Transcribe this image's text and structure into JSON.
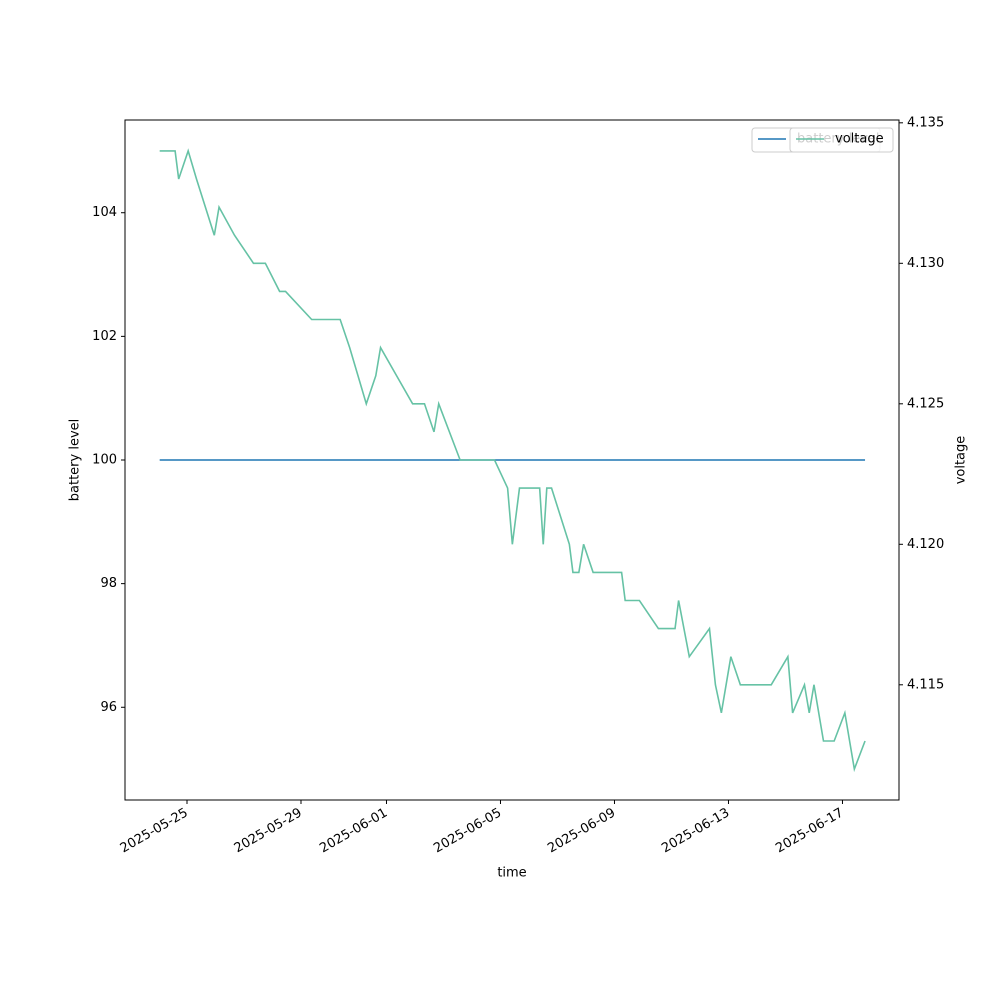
{
  "chart_data": {
    "type": "line",
    "x_label": "time",
    "y_label": "battery level",
    "y2_label": "voltage",
    "x": [
      "2025-05-24T01:00",
      "2025-05-24T14:00",
      "2025-05-24T17:00",
      "2025-05-25T01:00",
      "2025-05-25T08:00",
      "2025-05-25T23:00",
      "2025-05-26T03:00",
      "2025-05-26T16:00",
      "2025-05-27T08:00",
      "2025-05-27T18:00",
      "2025-05-28T06:00",
      "2025-05-28T11:00",
      "2025-05-29T09:00",
      "2025-05-30T09:00",
      "2025-05-30T17:00",
      "2025-05-31T07:00",
      "2025-05-31T15:00",
      "2025-05-31T19:00",
      "2025-06-01T22:00",
      "2025-06-02T08:00",
      "2025-06-02T16:00",
      "2025-06-02T20:00",
      "2025-06-03T14:00",
      "2025-06-04T19:00",
      "2025-06-05T06:00",
      "2025-06-05T10:00",
      "2025-06-05T16:00",
      "2025-06-06T09:00",
      "2025-06-06T12:00",
      "2025-06-06T15:00",
      "2025-06-06T19:00",
      "2025-06-07T10:00",
      "2025-06-07T13:00",
      "2025-06-07T18:00",
      "2025-06-07T22:00",
      "2025-06-08T06:00",
      "2025-06-09T06:00",
      "2025-06-09T09:00",
      "2025-06-09T21:00",
      "2025-06-10T13:00",
      "2025-06-11T03:00",
      "2025-06-11T06:00",
      "2025-06-11T15:00",
      "2025-06-12T08:00",
      "2025-06-12T13:00",
      "2025-06-12T18:00",
      "2025-06-13T02:00",
      "2025-06-13T10:00",
      "2025-06-14T12:00",
      "2025-06-15T02:00",
      "2025-06-15T06:00",
      "2025-06-15T16:00",
      "2025-06-15T20:00",
      "2025-06-16T00:00",
      "2025-06-16T08:00",
      "2025-06-16T17:00",
      "2025-06-17T02:00",
      "2025-06-17T10:00",
      "2025-06-17T19:00"
    ],
    "series": [
      {
        "name": "battery level",
        "color": "#1f77b4",
        "axis": "y",
        "values": [
          100,
          100,
          100,
          100,
          100,
          100,
          100,
          100,
          100,
          100,
          100,
          100,
          100,
          100,
          100,
          100,
          100,
          100,
          100,
          100,
          100,
          100,
          100,
          100,
          100,
          100,
          100,
          100,
          100,
          100,
          100,
          100,
          100,
          100,
          100,
          100,
          100,
          100,
          100,
          100,
          100,
          100,
          100,
          100,
          100,
          100,
          100,
          100,
          100,
          100,
          100,
          100,
          100,
          100,
          100,
          100,
          100,
          100,
          100
        ]
      },
      {
        "name": "voltage",
        "color": "#66c2a5",
        "axis": "y2",
        "values": [
          4.134,
          4.134,
          4.133,
          4.134,
          4.133,
          4.131,
          4.132,
          4.131,
          4.13,
          4.13,
          4.129,
          4.129,
          4.128,
          4.128,
          4.127,
          4.125,
          4.126,
          4.127,
          4.125,
          4.125,
          4.124,
          4.125,
          4.123,
          4.123,
          4.122,
          4.12,
          4.122,
          4.122,
          4.12,
          4.122,
          4.122,
          4.12,
          4.119,
          4.119,
          4.12,
          4.119,
          4.119,
          4.118,
          4.118,
          4.117,
          4.117,
          4.118,
          4.116,
          4.117,
          4.115,
          4.114,
          4.116,
          4.115,
          4.115,
          4.116,
          4.114,
          4.115,
          4.114,
          4.115,
          4.113,
          4.113,
          4.114,
          4.112,
          4.113
        ]
      }
    ],
    "xlim": [
      "2025-05-22T19:48",
      "2025-06-18T23:36"
    ],
    "xticks": [
      "2025-05-25",
      "2025-05-29",
      "2025-06-01",
      "2025-06-05",
      "2025-06-09",
      "2025-06-13",
      "2025-06-17"
    ],
    "ylim": [
      94.5,
      105.5
    ],
    "yticks": [
      96,
      98,
      100,
      102,
      104
    ],
    "y2lim": [
      4.1109,
      4.1351
    ],
    "y2ticks": [
      4.115,
      {
        "value": 4.12,
        "label": "4.120"
      },
      4.125,
      {
        "value": 4.13,
        "label": "4.130"
      },
      4.135
    ],
    "legend": "upper right",
    "grid": false
  }
}
